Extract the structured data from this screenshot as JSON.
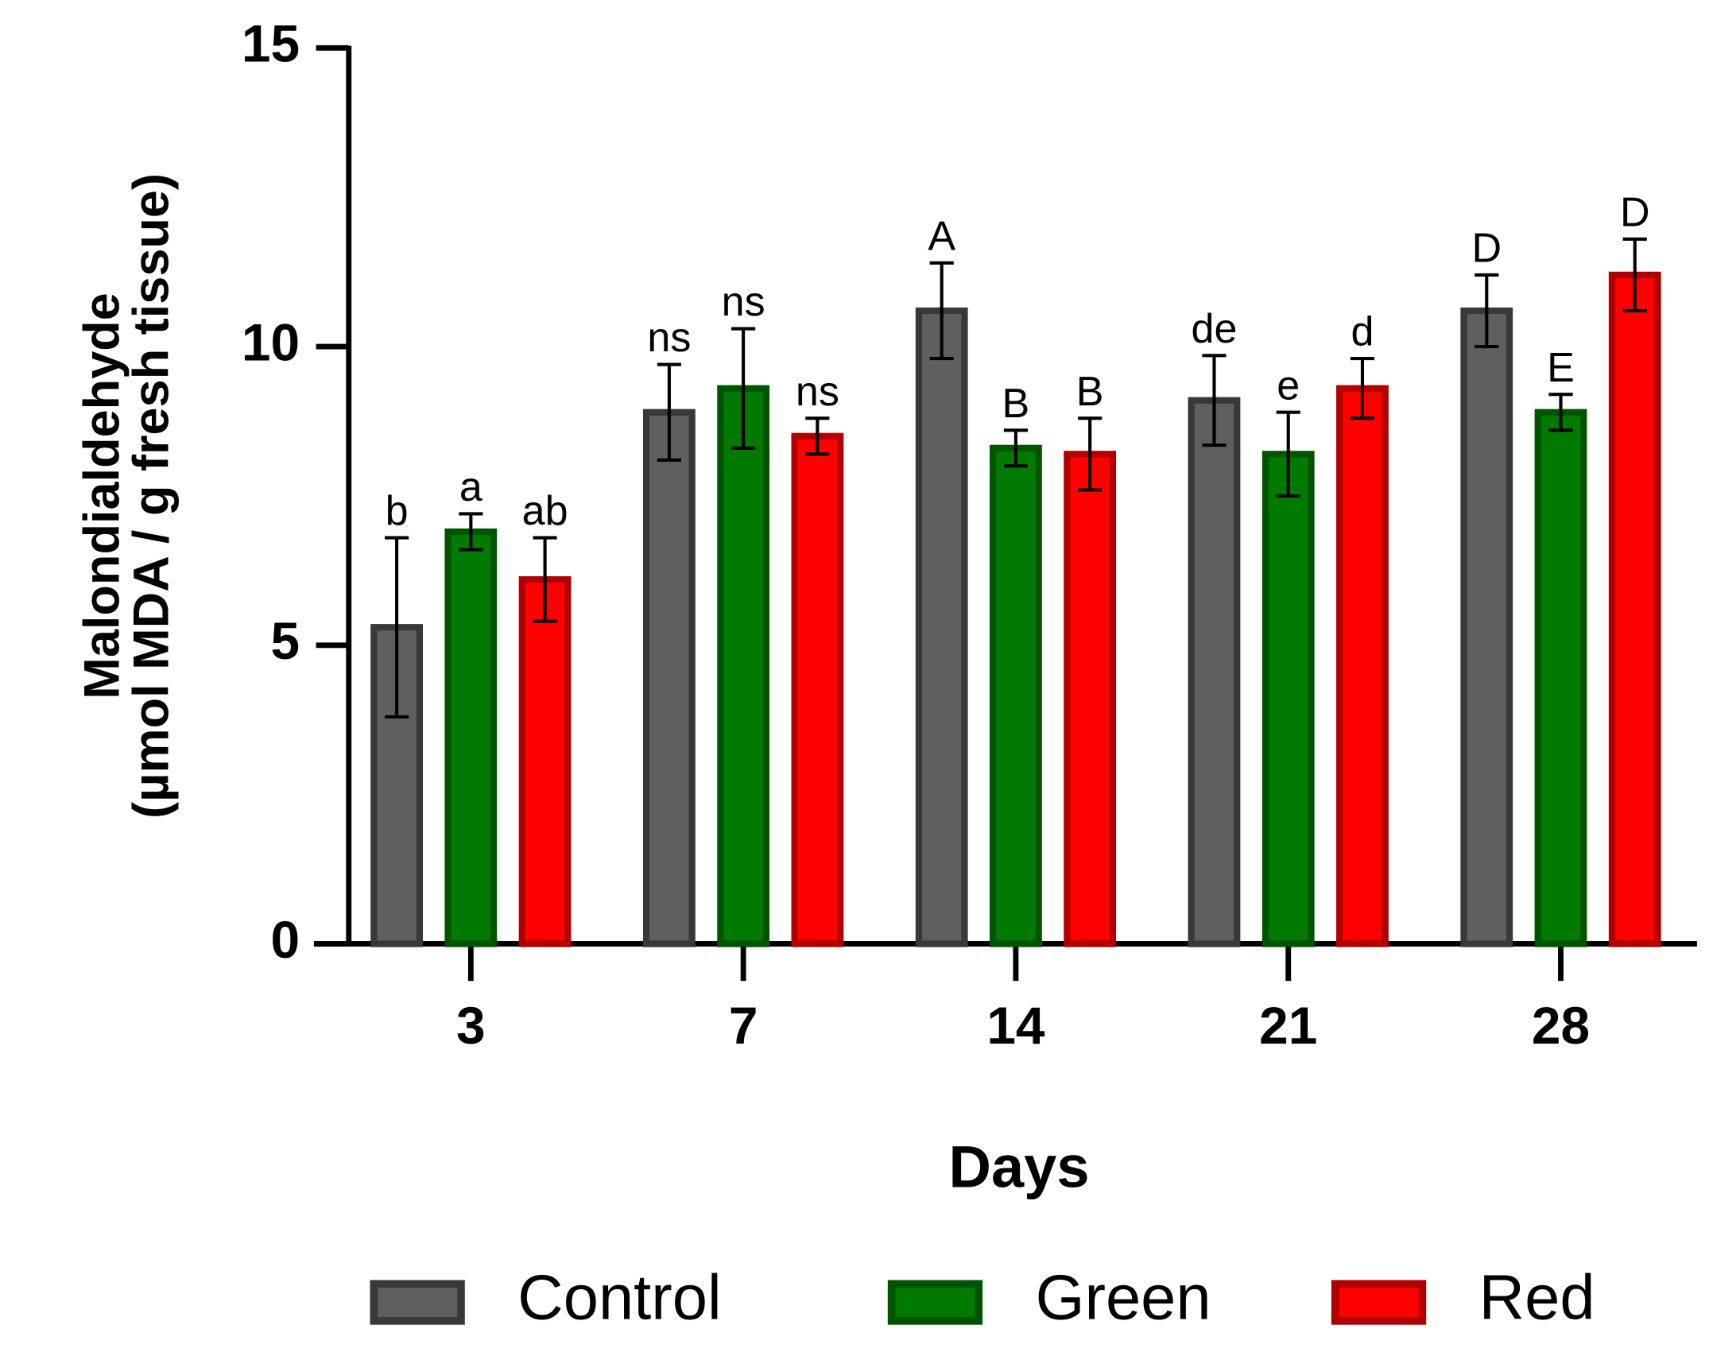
{
  "chart_data": {
    "type": "bar",
    "ylabel": [
      "Malondialdehyde",
      "(µmol MDA / g fresh tissue)"
    ],
    "xlabel": "Days",
    "categories": [
      "3",
      "7",
      "14",
      "21",
      "28"
    ],
    "ylim": [
      0,
      15
    ],
    "yticks": [
      0,
      5,
      10,
      15
    ],
    "series": [
      {
        "name": "Control",
        "color": "#5f5f5f",
        "edge_color": "#383838",
        "values": [
          5.3,
          8.9,
          10.6,
          9.1,
          10.6
        ],
        "errors": [
          1.5,
          0.8,
          0.8,
          0.75,
          0.6
        ],
        "labels": [
          "b",
          "ns",
          "A",
          "de",
          "D"
        ]
      },
      {
        "name": "Green",
        "color": "#007a00",
        "edge_color": "#005400",
        "values": [
          6.9,
          9.3,
          8.3,
          8.2,
          8.9
        ],
        "errors": [
          0.3,
          1.0,
          0.3,
          0.7,
          0.3
        ],
        "labels": [
          "a",
          "ns",
          "B",
          "e",
          "E"
        ]
      },
      {
        "name": "Red",
        "color": "#ff0000",
        "edge_color": "#b00000",
        "values": [
          6.1,
          8.5,
          8.2,
          9.3,
          11.2
        ],
        "errors": [
          0.7,
          0.3,
          0.6,
          0.5,
          0.6
        ],
        "labels": [
          "ab",
          "ns",
          "B",
          "d",
          "D"
        ]
      }
    ]
  }
}
